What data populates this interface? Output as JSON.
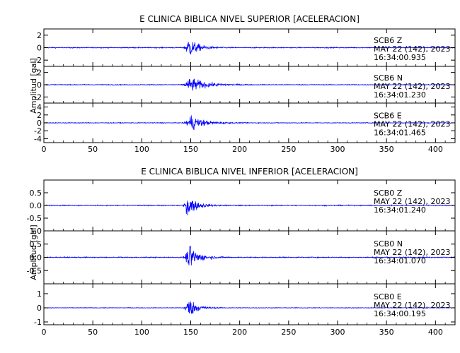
{
  "chart_data": [
    {
      "type": "line",
      "title": "E CLINICA BIBLICA NIVEL SUPERIOR [ACELERACION]",
      "ylabel": "Amplitud [gal]",
      "xlabel": "",
      "xlim": [
        0,
        420
      ],
      "x_ticks": [
        "0",
        "50",
        "100",
        "150",
        "200",
        "250",
        "300",
        "350",
        "400"
      ],
      "color": "#0000ff",
      "panels": [
        {
          "name": "SCB6 Z",
          "station": "SCB6",
          "component": "Z",
          "date_label": "MAY 22 (142), 2023",
          "time_label": "16:34:00.935",
          "ylim": [
            -3,
            3
          ],
          "y_ticks": [
            "-2",
            "0",
            "2"
          ],
          "y_tick_values": [
            -2,
            0,
            2
          ],
          "noise_amp": 0.12,
          "peak_amp": 2.7,
          "onset_s": 142,
          "peak_s": 148,
          "decay_s": 9
        },
        {
          "name": "SCB6 N",
          "station": "SCB6",
          "component": "N",
          "date_label": "MAY 22 (142), 2023",
          "time_label": "16:34:01.230",
          "ylim": [
            -3,
            3
          ],
          "y_ticks": [
            "-2",
            "0",
            "2"
          ],
          "y_tick_values": [
            -2,
            0,
            2
          ],
          "noise_amp": 0.1,
          "peak_amp": 2.0,
          "onset_s": 140,
          "peak_s": 150,
          "decay_s": 15
        },
        {
          "name": "SCB6 E",
          "station": "SCB6",
          "component": "E",
          "date_label": "MAY 22 (142), 2023",
          "time_label": "16:34:01.465",
          "ylim": [
            -5,
            5
          ],
          "y_ticks": [
            "-4",
            "-2",
            "0",
            "2",
            "4"
          ],
          "y_tick_values": [
            -4,
            -2,
            0,
            2,
            4
          ],
          "noise_amp": 0.15,
          "peak_amp": 3.5,
          "onset_s": 142,
          "peak_s": 150,
          "decay_s": 12
        }
      ]
    },
    {
      "type": "line",
      "title": "E CLINICA BIBLICA NIVEL INFERIOR [ACELERACION]",
      "ylabel": "Amplitud [gal]",
      "xlabel": "",
      "xlim": [
        0,
        420
      ],
      "x_ticks": [
        "0",
        "50",
        "100",
        "150",
        "200",
        "250",
        "300",
        "350",
        "400"
      ],
      "color": "#0000ff",
      "panels": [
        {
          "name": "SCB0 Z",
          "station": "SCB0",
          "component": "Z",
          "date_label": "MAY 22 (142), 2023",
          "time_label": "16:34:01.240",
          "ylim": [
            -1,
            1
          ],
          "y_ticks": [
            "-0.5",
            "0.0",
            "0.5"
          ],
          "y_tick_values": [
            -0.5,
            0,
            0.5
          ],
          "noise_amp": 0.03,
          "peak_amp": 0.75,
          "onset_s": 142,
          "peak_s": 147,
          "decay_s": 8
        },
        {
          "name": "SCB0 N",
          "station": "SCB0",
          "component": "N",
          "date_label": "MAY 22 (142), 2023",
          "time_label": "16:34:01.070",
          "ylim": [
            -1,
            1
          ],
          "y_ticks": [
            "-0.5",
            "0.0",
            "0.5",
            "1.0"
          ],
          "y_tick_values": [
            -0.5,
            0,
            0.5,
            1.0
          ],
          "noise_amp": 0.03,
          "peak_amp": 0.75,
          "onset_s": 142,
          "peak_s": 149,
          "decay_s": 9
        },
        {
          "name": "SCB0 E",
          "station": "SCB0",
          "component": "E",
          "date_label": "MAY 22 (142), 2023",
          "time_label": "16:34:00.195",
          "ylim": [
            -1.2,
            1.7
          ],
          "y_ticks": [
            "-1",
            "0",
            "1"
          ],
          "y_tick_values": [
            -1,
            0,
            1
          ],
          "noise_amp": 0.035,
          "peak_amp": 1.2,
          "onset_s": 142,
          "peak_s": 148,
          "decay_s": 8
        }
      ]
    }
  ]
}
